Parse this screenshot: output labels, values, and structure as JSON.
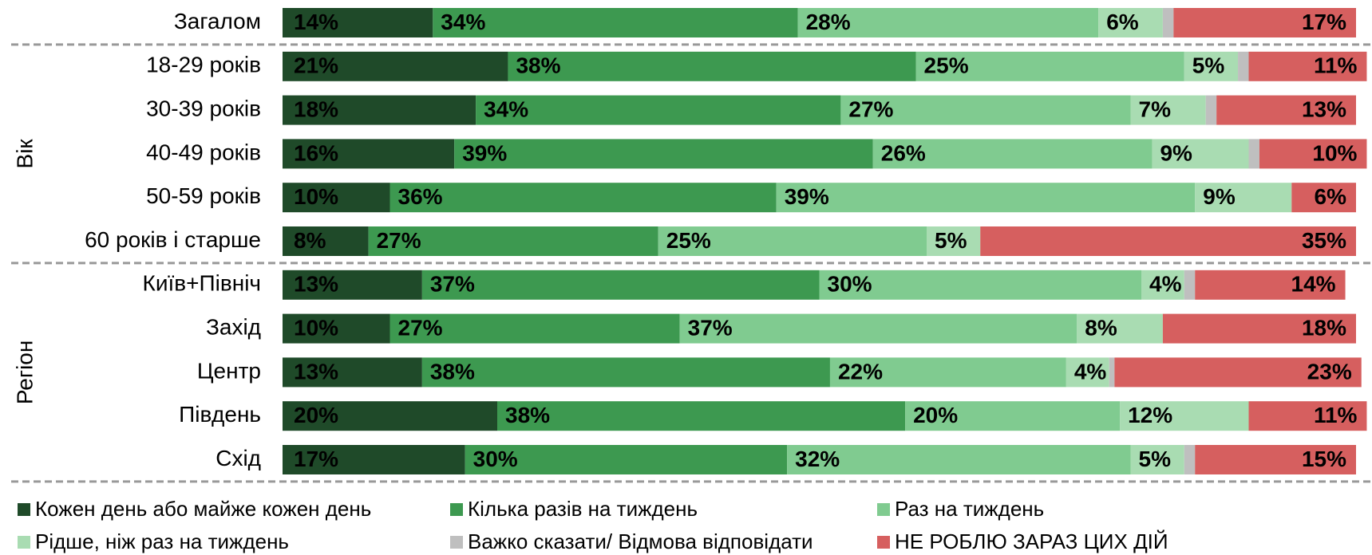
{
  "chart_data": {
    "type": "stacked-bar-horizontal",
    "categories": [
      "Загалом",
      "18-29 років",
      "30-39 років",
      "40-49 років",
      "50-59 років",
      "60 років і старше",
      "Київ+Північ",
      "Захід",
      "Центр",
      "Південь",
      "Схід"
    ],
    "group_labels": [
      "Вік",
      "Регіон"
    ],
    "series": [
      {
        "name": "Кожен день або майже кожен день",
        "color": "#1f4a29",
        "values": [
          14,
          21,
          18,
          16,
          10,
          8,
          13,
          10,
          13,
          20,
          17
        ],
        "value_labels": [
          "14%",
          "21%",
          "18%",
          "16%",
          "10%",
          "8%",
          "13%",
          "10%",
          "13%",
          "20%",
          "17%"
        ]
      },
      {
        "name": "Кілька разів на тиждень",
        "color": "#3d9950",
        "values": [
          34,
          38,
          34,
          39,
          36,
          27,
          37,
          27,
          38,
          38,
          30
        ],
        "value_labels": [
          "34%",
          "38%",
          "34%",
          "39%",
          "36%",
          "27%",
          "37%",
          "27%",
          "38%",
          "38%",
          "30%"
        ]
      },
      {
        "name": "Раз на тиждень",
        "color": "#80cb90",
        "values": [
          28,
          25,
          27,
          26,
          39,
          25,
          30,
          37,
          22,
          20,
          32
        ],
        "value_labels": [
          "28%",
          "25%",
          "27%",
          "26%",
          "39%",
          "25%",
          "30%",
          "37%",
          "22%",
          "20%",
          "32%"
        ]
      },
      {
        "name": "Рідше, ніж раз на тиждень",
        "color": "#a9dcb2",
        "values": [
          6,
          5,
          7,
          9,
          9,
          5,
          4,
          8,
          4,
          12,
          5
        ],
        "value_labels": [
          "6%",
          "5%",
          "7%",
          "9%",
          "9%",
          "5%",
          "4%",
          "8%",
          "4%",
          "12%",
          "5%"
        ]
      },
      {
        "name": "Важко сказати/ Відмова відповідати",
        "color": "#bfbfbf",
        "values": [
          1,
          1,
          1,
          1,
          0,
          0,
          1,
          0,
          0.5,
          0,
          1
        ]
      },
      {
        "name": "НЕ РОБЛЮ ЗАРАЗ ЦИХ ДІЙ",
        "color": "#d65f5f",
        "values": [
          17,
          11,
          13,
          10,
          6,
          35,
          14,
          18,
          23,
          11,
          15
        ],
        "value_labels": [
          "17%",
          "11%",
          "13%",
          "10%",
          "6%",
          "35%",
          "14%",
          "18%",
          "23%",
          "11%",
          "15%"
        ]
      }
    ]
  }
}
